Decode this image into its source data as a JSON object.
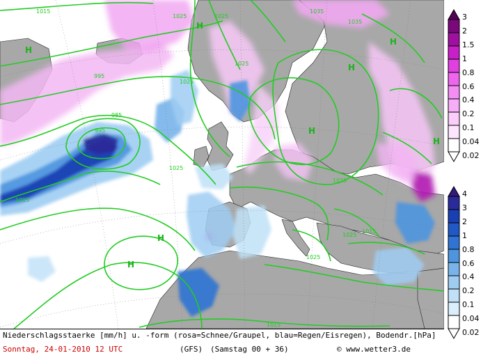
{
  "map": {
    "isobar_labels": [
      "1015",
      "1025",
      "1035",
      "1035",
      "1025",
      "1025",
      "1025",
      "1025",
      "1015",
      "1015",
      "985",
      "1025",
      "995",
      "1025",
      "1035",
      "995",
      "1015"
    ],
    "high_marker": "H",
    "colors": {
      "sea": "#ffffff",
      "land": "#a8a8a8",
      "isobar": "#22cc22",
      "snow_scale": [
        "#ffffff",
        "#fde6fd",
        "#fbcdfb",
        "#f7aef7",
        "#f48ef4",
        "#ee66ee",
        "#e040e0",
        "#c81fc8",
        "#a010a0",
        "#7a087a",
        "#560256"
      ],
      "rain_scale": [
        "#ffffff",
        "#dbeefb",
        "#bfe0f7",
        "#9fcdf2",
        "#78b4ea",
        "#4e95df",
        "#2f74d3",
        "#2058c5",
        "#1a3fb3",
        "#2a2a9a",
        "#341a7a"
      ]
    }
  },
  "legend": {
    "snow": {
      "labels": [
        "3",
        "2",
        "1.5",
        "1",
        "0.8",
        "0.6",
        "0.4",
        "0.2",
        "0.1",
        "0.04",
        "0.02"
      ]
    },
    "rain": {
      "labels": [
        "4",
        "3",
        "2",
        "1",
        "0.8",
        "0.6",
        "0.4",
        "0.2",
        "0.1",
        "0.04",
        "0.02"
      ]
    }
  },
  "footer": {
    "line1": "Niederschlagsstaerke [mm/h] u. -form (rosa=Schnee/Graupel, blau=Regen/Eisregen), Bodendr.[hPa]",
    "date": "Sonntag, 24-01-2010  12 UTC",
    "model": "(GFS)",
    "run": "(Samstag 00 + 36)",
    "copyright": "© www.wetter3.de"
  }
}
